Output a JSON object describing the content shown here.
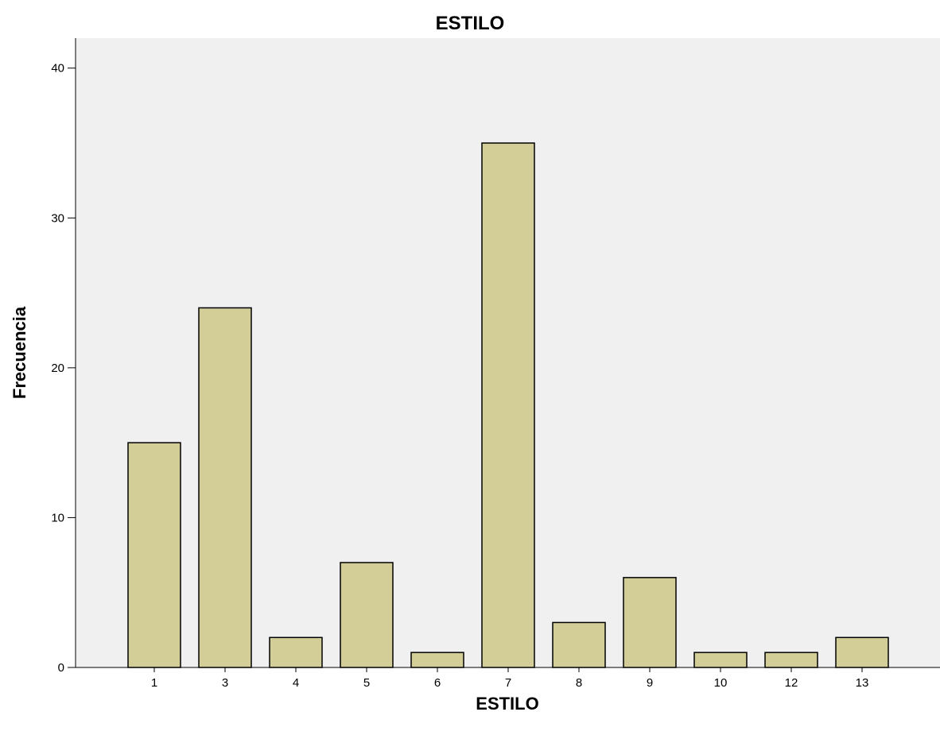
{
  "chart_data": {
    "type": "bar",
    "title": "ESTILO",
    "xlabel": "ESTILO",
    "ylabel": "Frecuencia",
    "categories": [
      "1",
      "3",
      "4",
      "5",
      "6",
      "7",
      "8",
      "9",
      "10",
      "12",
      "13"
    ],
    "values": [
      15,
      24,
      2,
      7,
      1,
      35,
      3,
      6,
      1,
      1,
      2
    ],
    "ylim": [
      0,
      42
    ],
    "yticks": [
      0,
      10,
      20,
      30,
      40
    ],
    "grid": false,
    "colors": {
      "plot_background": "#f0f0f0",
      "bar_fill": "#d3ce98",
      "bar_stroke": "#000000"
    }
  }
}
